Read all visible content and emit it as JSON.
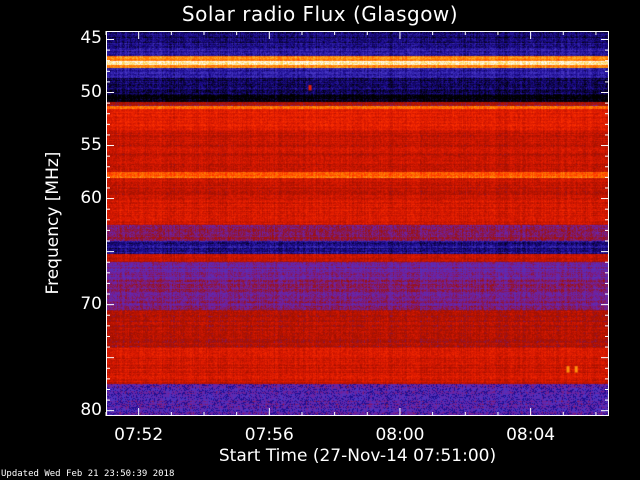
{
  "chart_data": {
    "type": "heatmap",
    "title": "Solar radio Flux (Glasgow)",
    "xlabel": "Start Time (27-Nov-14 07:51:00)",
    "ylabel": "Frequency [MHz]",
    "x_ticks": [
      "07:52",
      "07:56",
      "08:00",
      "08:04"
    ],
    "x_tick_minutes": [
      1,
      5,
      9,
      13
    ],
    "xlim_minutes": [
      0,
      15.4
    ],
    "y_ticks": [
      45,
      50,
      55,
      60,
      65,
      70,
      75,
      80
    ],
    "y_tick_labels": [
      "45",
      "50",
      "55",
      "60",
      "",
      "70",
      "",
      "80"
    ],
    "ylim": [
      44.2,
      80.5
    ],
    "y_inverted": true,
    "colormap": [
      "#000000",
      "#1a0a8c",
      "#4838c8",
      "#7020a0",
      "#a01000",
      "#d81800",
      "#ff3000",
      "#ff8000",
      "#ffd040",
      "#ffffff"
    ],
    "bands": [
      {
        "f0": 44.2,
        "f1": 45.3,
        "level": 0.08
      },
      {
        "f0": 45.3,
        "f1": 46.0,
        "level": 0.12
      },
      {
        "f0": 46.0,
        "f1": 46.6,
        "level": 0.15
      },
      {
        "f0": 46.6,
        "f1": 47.0,
        "level": 0.78
      },
      {
        "f0": 47.0,
        "f1": 47.4,
        "level": 0.97
      },
      {
        "f0": 47.4,
        "f1": 47.7,
        "level": 0.78
      },
      {
        "f0": 47.7,
        "f1": 48.6,
        "level": 0.15
      },
      {
        "f0": 48.6,
        "f1": 50.2,
        "level": 0.08
      },
      {
        "f0": 50.2,
        "f1": 50.9,
        "level": 0.0
      },
      {
        "f0": 50.9,
        "f1": 51.3,
        "level": 0.45
      },
      {
        "f0": 51.3,
        "f1": 51.6,
        "level": 0.75
      },
      {
        "f0": 51.6,
        "f1": 53.5,
        "level": 0.58
      },
      {
        "f0": 53.5,
        "f1": 57.5,
        "level": 0.52
      },
      {
        "f0": 57.5,
        "f1": 58.1,
        "level": 0.74
      },
      {
        "f0": 58.1,
        "f1": 60.0,
        "level": 0.52
      },
      {
        "f0": 60.0,
        "f1": 62.5,
        "level": 0.55
      },
      {
        "f0": 62.5,
        "f1": 64.0,
        "level": 0.38
      },
      {
        "f0": 64.0,
        "f1": 65.2,
        "level": 0.12
      },
      {
        "f0": 65.2,
        "f1": 66.0,
        "level": 0.5
      },
      {
        "f0": 66.0,
        "f1": 67.5,
        "level": 0.32
      },
      {
        "f0": 67.5,
        "f1": 70.5,
        "level": 0.36
      },
      {
        "f0": 70.5,
        "f1": 74.0,
        "level": 0.48
      },
      {
        "f0": 74.0,
        "f1": 77.5,
        "level": 0.54
      },
      {
        "f0": 77.5,
        "f1": 80.5,
        "level": 0.3
      }
    ],
    "bursts": [
      {
        "t": 14.1,
        "f0": 75.8,
        "f1": 76.4,
        "level": 0.8
      },
      {
        "t": 14.35,
        "f0": 75.8,
        "f1": 76.4,
        "level": 0.8
      },
      {
        "t": 6.2,
        "f0": 49.3,
        "f1": 49.8,
        "level": 0.6
      }
    ]
  },
  "footer": {
    "updated": "Updated Wed Feb 21 23:50:39 2018"
  }
}
